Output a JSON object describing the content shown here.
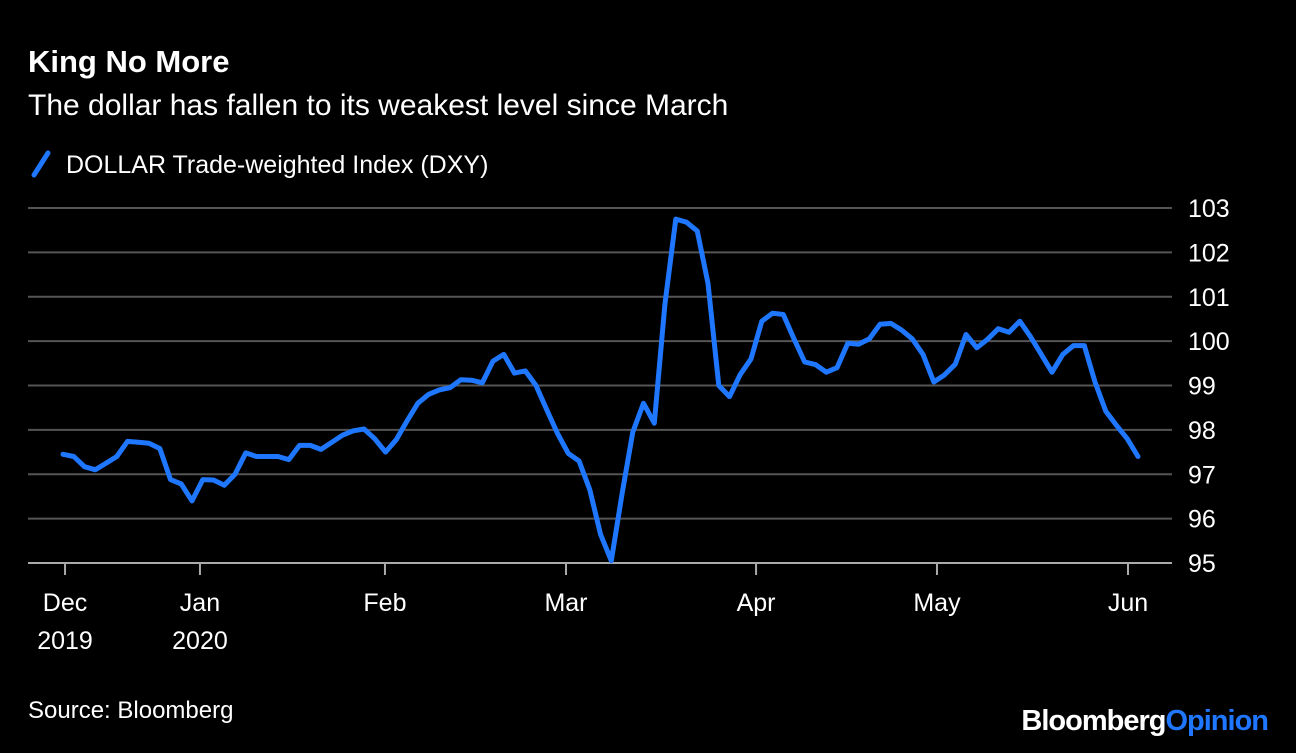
{
  "chart_data": {
    "type": "line",
    "title": "King No More",
    "subtitle": "The dollar has fallen to its weakest level since March",
    "source": "Source: Bloomberg",
    "brand": {
      "first": "Bloomberg",
      "second": "Opinion"
    },
    "series": [
      {
        "name": "DOLLAR Trade-weighted Index (DXY)",
        "color": "#1f77ff",
        "values": [
          97.45,
          97.4,
          97.17,
          97.1,
          97.25,
          97.4,
          97.74,
          97.72,
          97.7,
          97.58,
          96.88,
          96.78,
          96.4,
          96.88,
          96.87,
          96.75,
          97.0,
          97.48,
          97.4,
          97.4,
          97.4,
          97.33,
          97.65,
          97.65,
          97.56,
          97.72,
          97.88,
          97.98,
          98.02,
          97.8,
          97.5,
          97.78,
          98.2,
          98.6,
          98.8,
          98.9,
          98.95,
          99.13,
          99.12,
          99.06,
          99.55,
          99.7,
          99.28,
          99.33,
          99.0,
          98.45,
          97.92,
          97.47,
          97.3,
          96.65,
          95.65,
          95.05,
          96.55,
          97.95,
          98.6,
          98.15,
          100.85,
          102.75,
          102.68,
          102.48,
          101.3,
          99.0,
          98.75,
          99.25,
          99.6,
          100.45,
          100.63,
          100.6,
          100.05,
          99.53,
          99.47,
          99.3,
          99.4,
          99.95,
          99.93,
          100.05,
          100.38,
          100.4,
          100.25,
          100.05,
          99.7,
          99.08,
          99.24,
          99.48,
          100.15,
          99.85,
          100.04,
          100.28,
          100.2,
          100.45,
          100.1,
          99.7,
          99.3,
          99.7,
          99.9,
          99.9,
          99.08,
          98.42,
          98.1,
          97.8,
          97.4
        ]
      }
    ],
    "xlim": [
      0,
      100
    ],
    "xticks": [
      {
        "value": 0.19,
        "label": "Dec 2019"
      },
      {
        "value": 12.74,
        "label": "Jan 2020"
      },
      {
        "value": 29.95,
        "label": "Feb"
      },
      {
        "value": 46.79,
        "label": "Mar"
      },
      {
        "value": 64.47,
        "label": "Apr"
      },
      {
        "value": 81.3,
        "label": "May"
      },
      {
        "value": 99.07,
        "label": "Jun"
      }
    ],
    "ylim": [
      95,
      103
    ],
    "yticks": [
      95,
      96,
      97,
      98,
      99,
      100,
      101,
      102,
      103
    ],
    "grid": true
  }
}
